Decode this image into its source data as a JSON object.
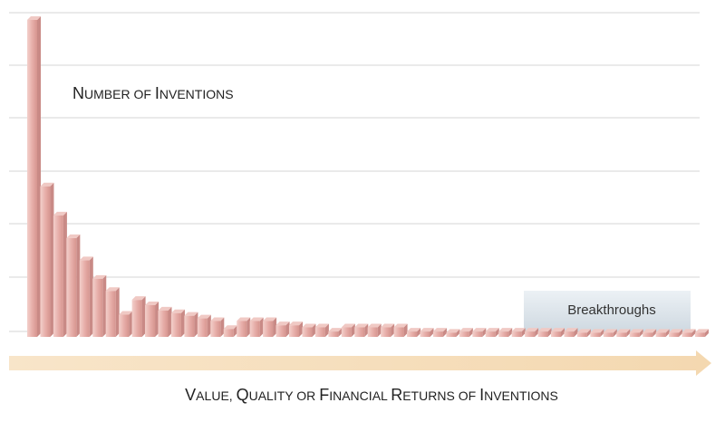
{
  "chart_data": {
    "type": "bar",
    "title": "",
    "ylabel": "Number of Inventions",
    "xlabel": "Value, Quality or Financial Returns of Inventions",
    "annotation": "Breakthroughs",
    "grid": true,
    "values": [
      6.0,
      2.85,
      2.3,
      1.87,
      1.45,
      1.1,
      0.87,
      0.42,
      0.7,
      0.6,
      0.5,
      0.45,
      0.4,
      0.35,
      0.3,
      0.15,
      0.3,
      0.3,
      0.3,
      0.22,
      0.22,
      0.18,
      0.18,
      0.1,
      0.18,
      0.18,
      0.18,
      0.18,
      0.18,
      0.1,
      0.1,
      0.1,
      0.08,
      0.1,
      0.1,
      0.1,
      0.1,
      0.1,
      0.1,
      0.1,
      0.1,
      0.1,
      0.08,
      0.08,
      0.08,
      0.08,
      0.08,
      0.08,
      0.08,
      0.08,
      0.08,
      0.08
    ],
    "ylim": [
      0,
      6.0
    ],
    "colors": {
      "bar_front": "#e3a7a2",
      "bar_highlight": "#f2cdc8",
      "bar_side": "#c98a86",
      "bar_top": "#f0c9c4",
      "grid": "#d6d6d6",
      "arrow": "#f6dfbd",
      "breakthrough_box": "#dfe6ec"
    }
  }
}
